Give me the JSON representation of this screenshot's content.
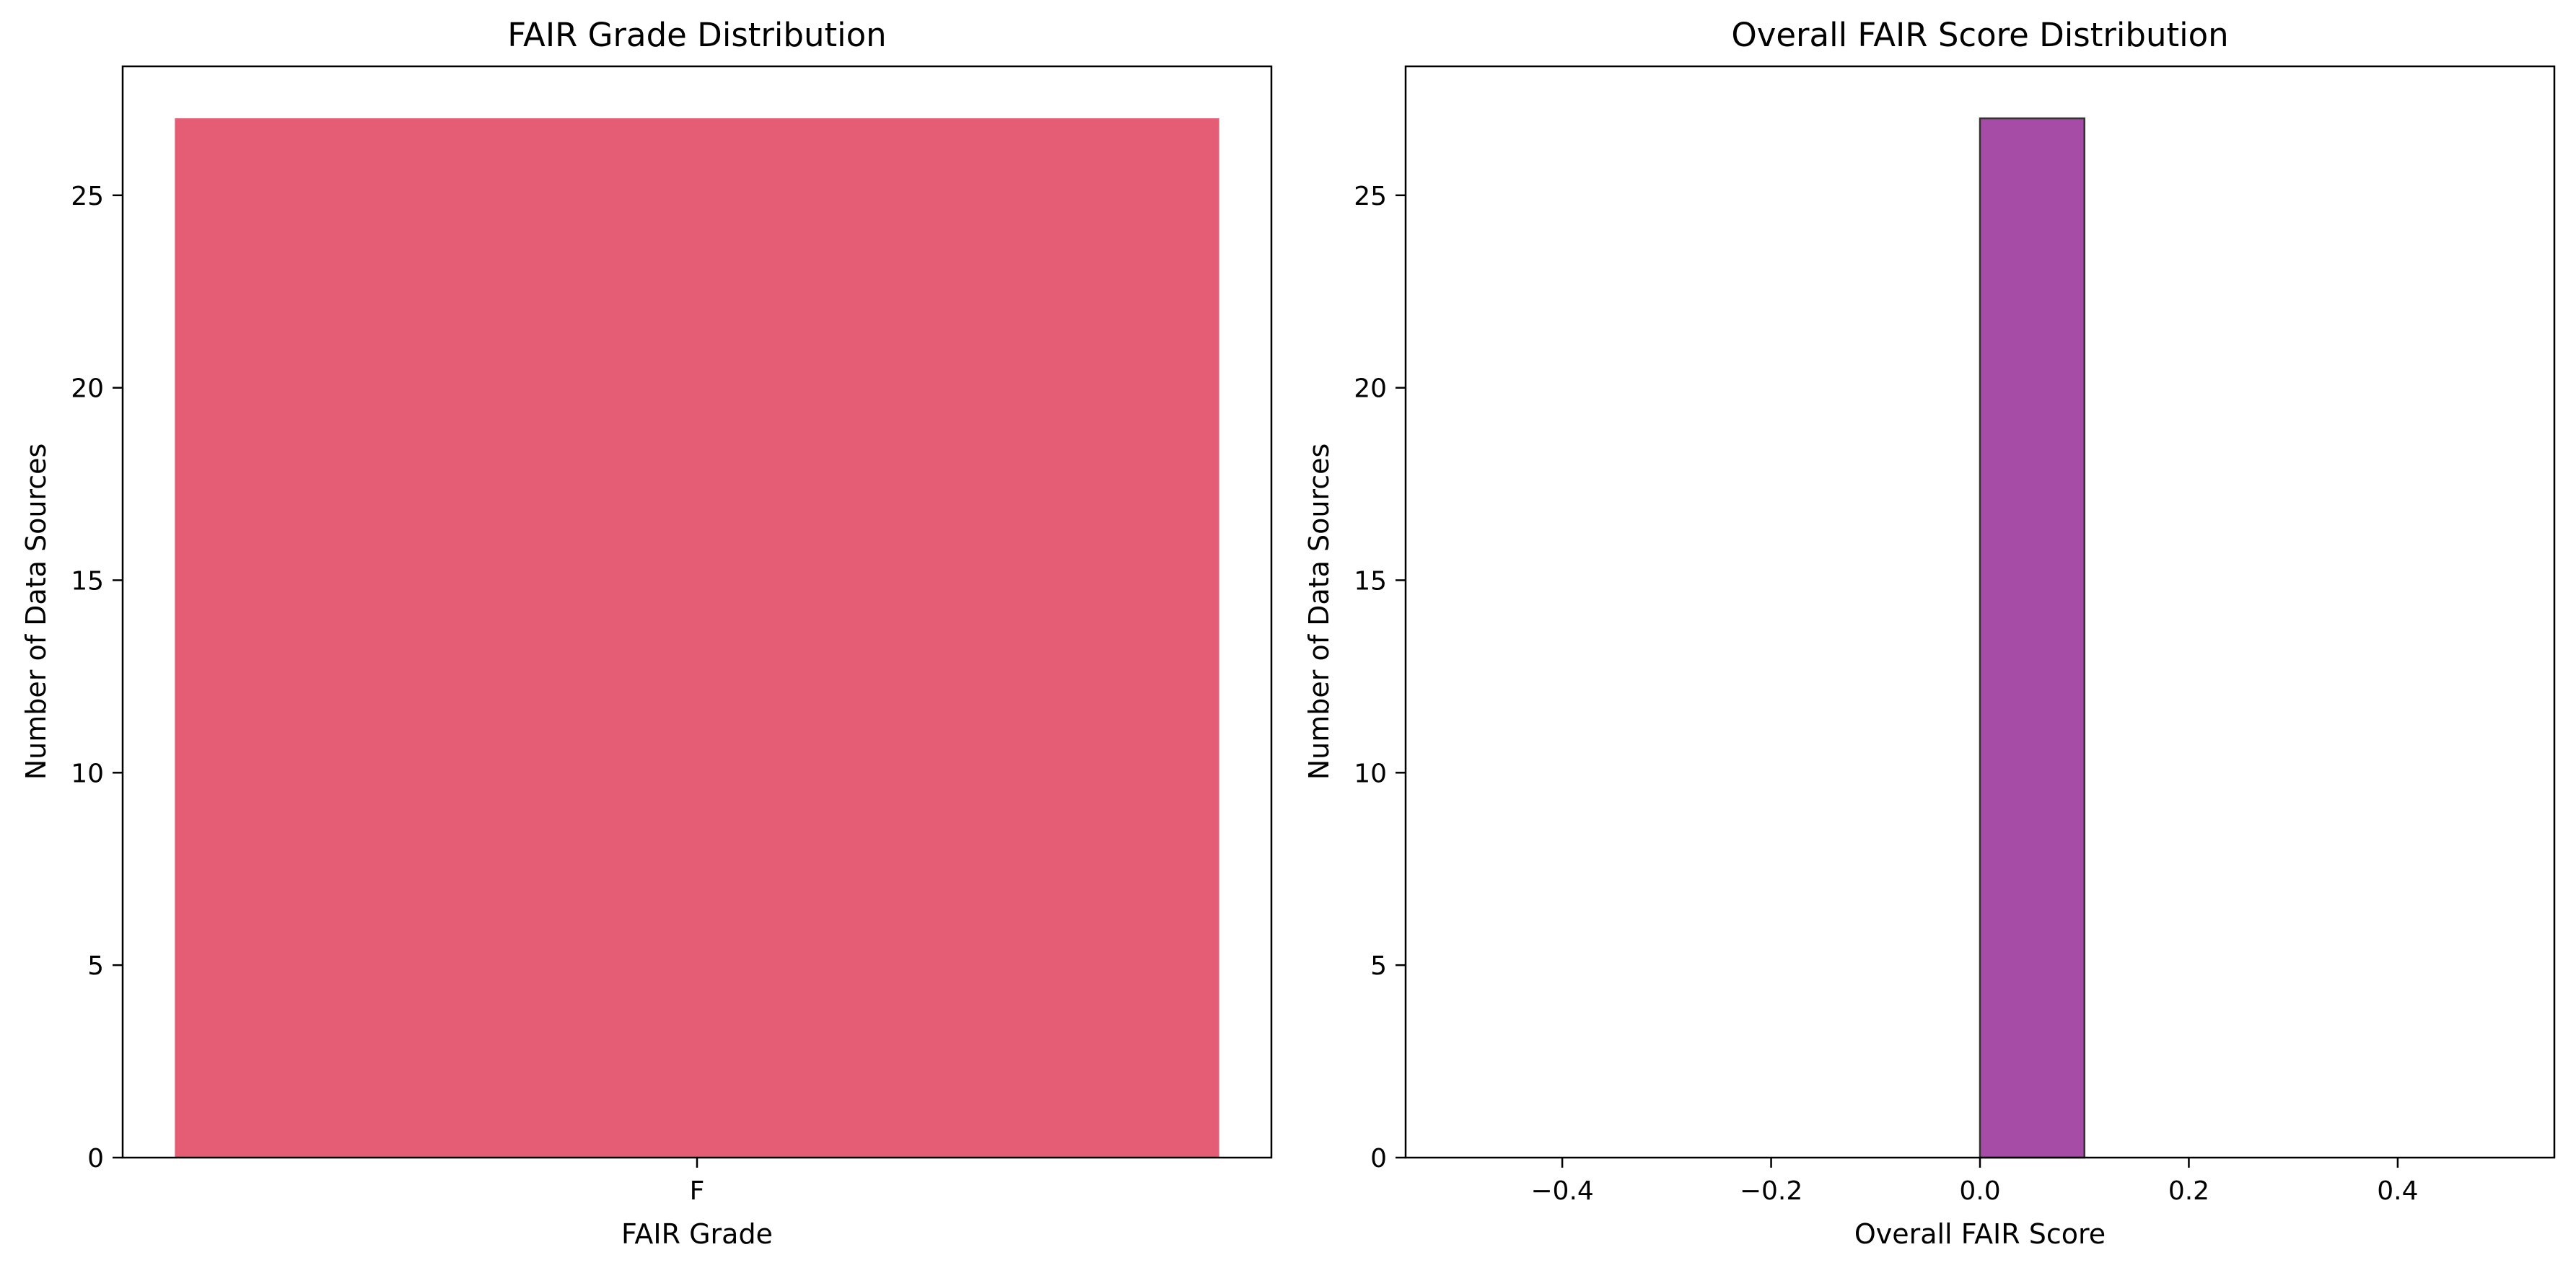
{
  "chart_data": [
    {
      "type": "bar",
      "title": "FAIR Grade Distribution",
      "xlabel": "FAIR Grade",
      "ylabel": "Number of Data Sources",
      "categories": [
        "F"
      ],
      "values": [
        27
      ],
      "ylim": [
        0,
        28.35
      ],
      "yticks": [
        0,
        5,
        10,
        15,
        20,
        25
      ],
      "grid": false,
      "color": "#e55c75"
    },
    {
      "type": "bar",
      "title": "Overall FAIR Score Distribution",
      "xlabel": "Overall FAIR Score",
      "ylabel": "Number of Data Sources",
      "bins": [
        [
          -0.5,
          -0.4
        ],
        [
          -0.4,
          -0.3
        ],
        [
          -0.3,
          -0.2
        ],
        [
          -0.2,
          -0.1
        ],
        [
          -0.1,
          0.0
        ],
        [
          0.0,
          0.1
        ],
        [
          0.1,
          0.2
        ],
        [
          0.2,
          0.3
        ],
        [
          0.3,
          0.4
        ],
        [
          0.4,
          0.5
        ]
      ],
      "counts": [
        0,
        0,
        0,
        0,
        0,
        27,
        0,
        0,
        0,
        0
      ],
      "xlim": [
        -0.55,
        0.55
      ],
      "ylim": [
        0,
        28.35
      ],
      "xticks": [
        -0.4,
        -0.2,
        0.0,
        0.2,
        0.4
      ],
      "xtick_labels": [
        "−0.4",
        "−0.2",
        "0.0",
        "0.2",
        "0.4"
      ],
      "yticks": [
        0,
        5,
        10,
        15,
        20,
        25
      ],
      "grid": false,
      "color": "#a64ca6",
      "edge_color": "#333333"
    }
  ]
}
